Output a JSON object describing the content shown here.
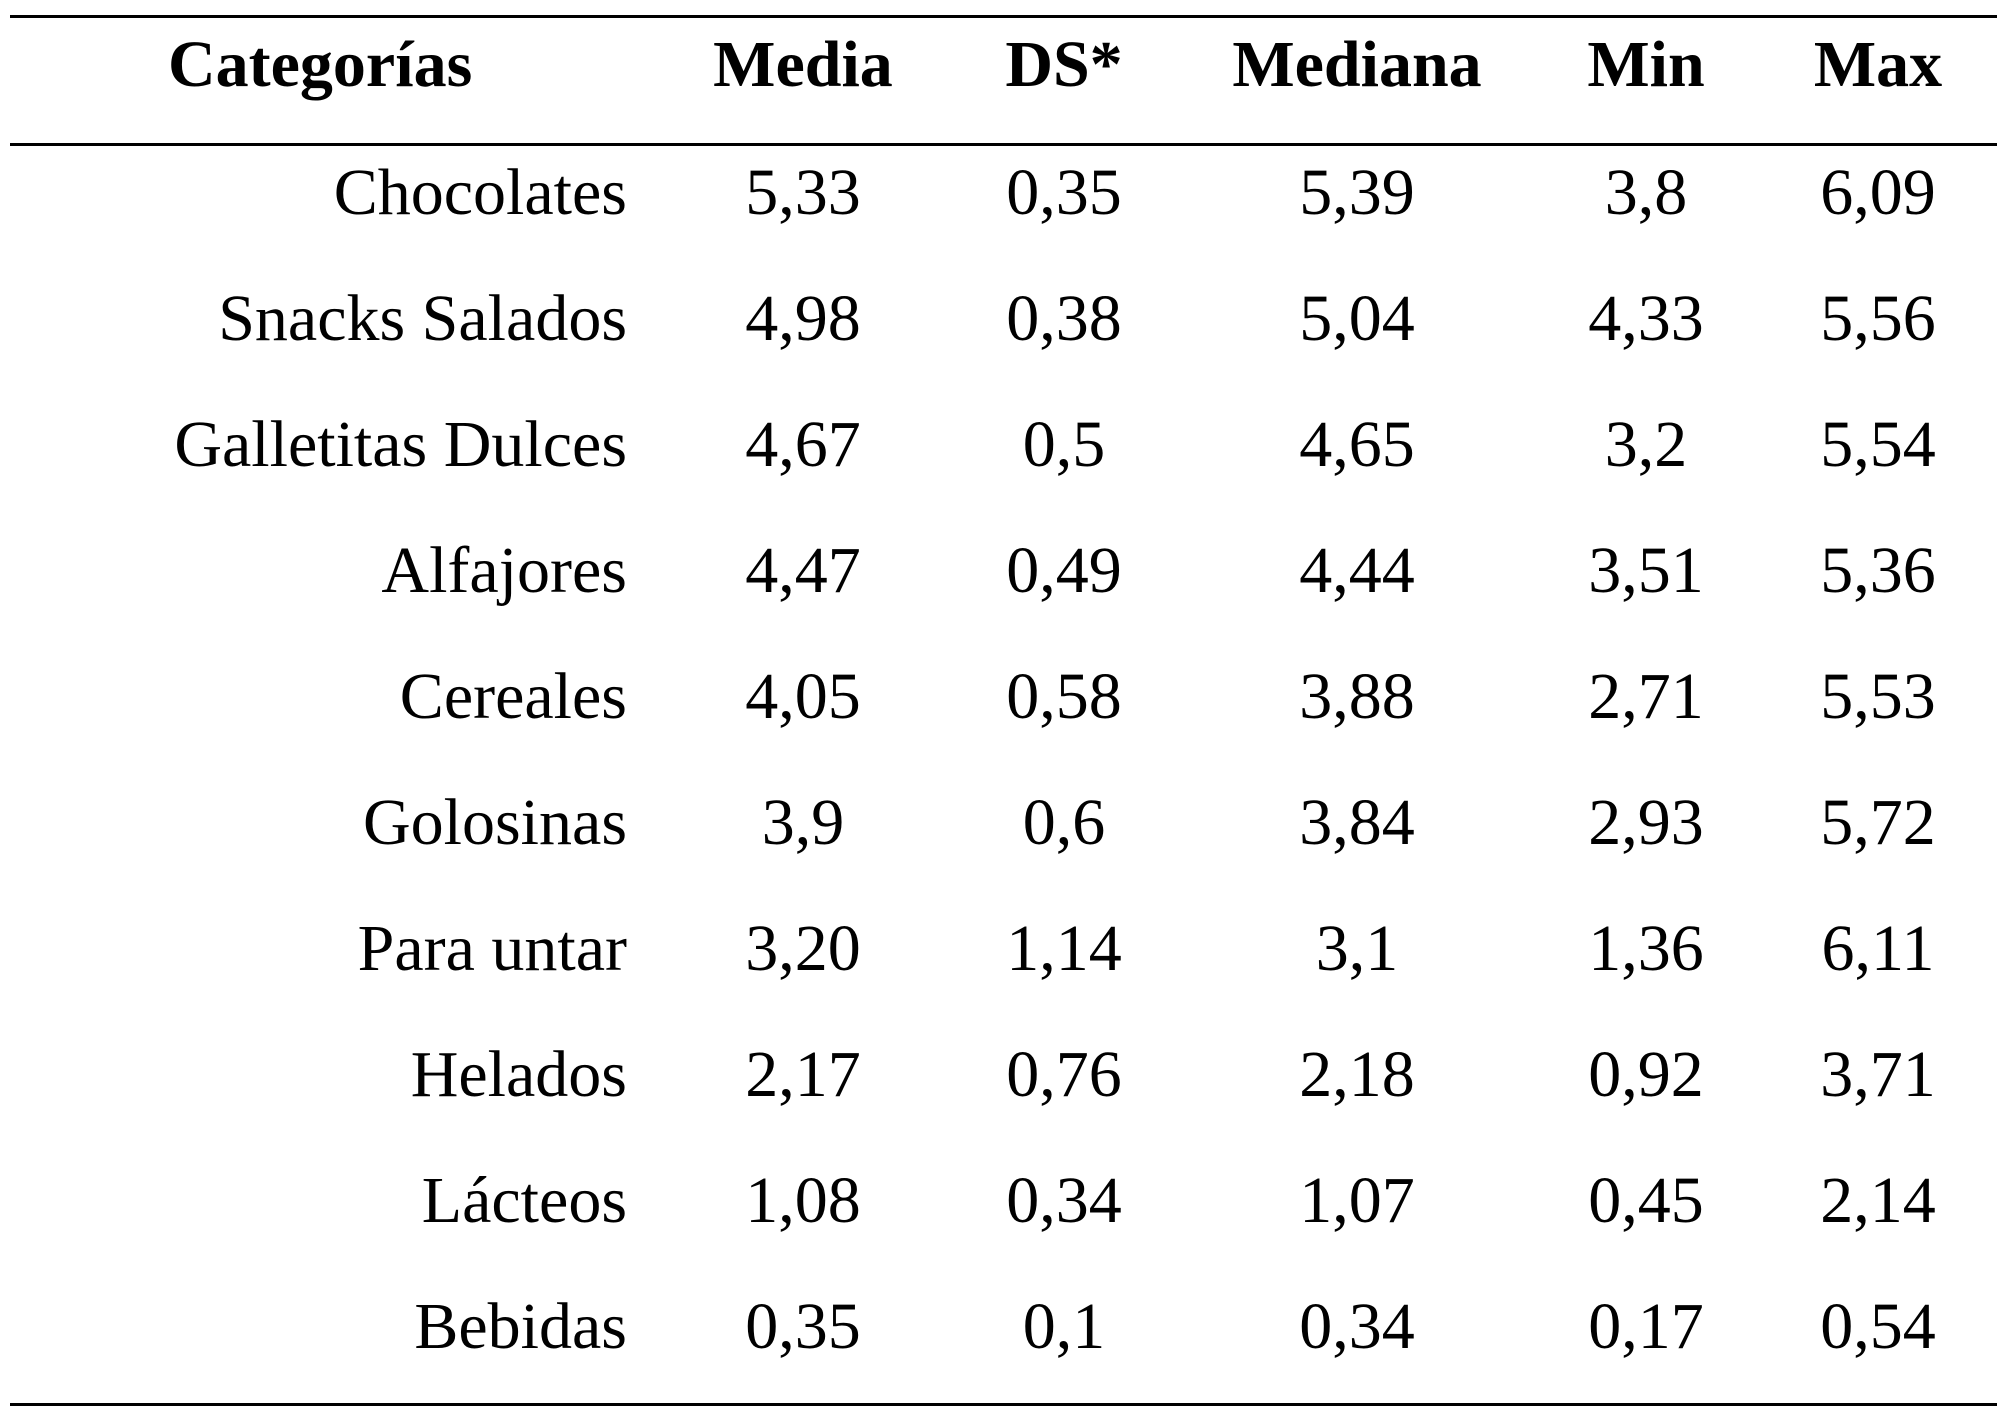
{
  "table": {
    "headers": [
      "Categorías",
      "Media",
      "DS*",
      "Mediana",
      "Min",
      "Max"
    ],
    "rows": [
      {
        "categoria": "Chocolates",
        "media": "5,33",
        "ds": "0,35",
        "mediana": "5,39",
        "min": "3,8",
        "max": "6,09"
      },
      {
        "categoria": "Snacks Salados",
        "media": "4,98",
        "ds": "0,38",
        "mediana": "5,04",
        "min": "4,33",
        "max": "5,56"
      },
      {
        "categoria": "Galletitas Dulces",
        "media": "4,67",
        "ds": "0,5",
        "mediana": "4,65",
        "min": "3,2",
        "max": "5,54"
      },
      {
        "categoria": "Alfajores",
        "media": "4,47",
        "ds": "0,49",
        "mediana": "4,44",
        "min": "3,51",
        "max": "5,36"
      },
      {
        "categoria": "Cereales",
        "media": "4,05",
        "ds": "0,58",
        "mediana": "3,88",
        "min": "2,71",
        "max": "5,53"
      },
      {
        "categoria": "Golosinas",
        "media": "3,9",
        "ds": "0,6",
        "mediana": "3,84",
        "min": "2,93",
        "max": "5,72"
      },
      {
        "categoria": "Para untar",
        "media": "3,20",
        "ds": "1,14",
        "mediana": "3,1",
        "min": "1,36",
        "max": "6,11"
      },
      {
        "categoria": "Helados",
        "media": "2,17",
        "ds": "0,76",
        "mediana": "2,18",
        "min": "0,92",
        "max": "3,71"
      },
      {
        "categoria": "Lácteos",
        "media": "1,08",
        "ds": "0,34",
        "mediana": "1,07",
        "min": "0,45",
        "max": "2,14"
      },
      {
        "categoria": "Bebidas",
        "media": "0,35",
        "ds": "0,1",
        "mediana": "0,34",
        "min": "0,17",
        "max": "0,54"
      }
    ]
  }
}
